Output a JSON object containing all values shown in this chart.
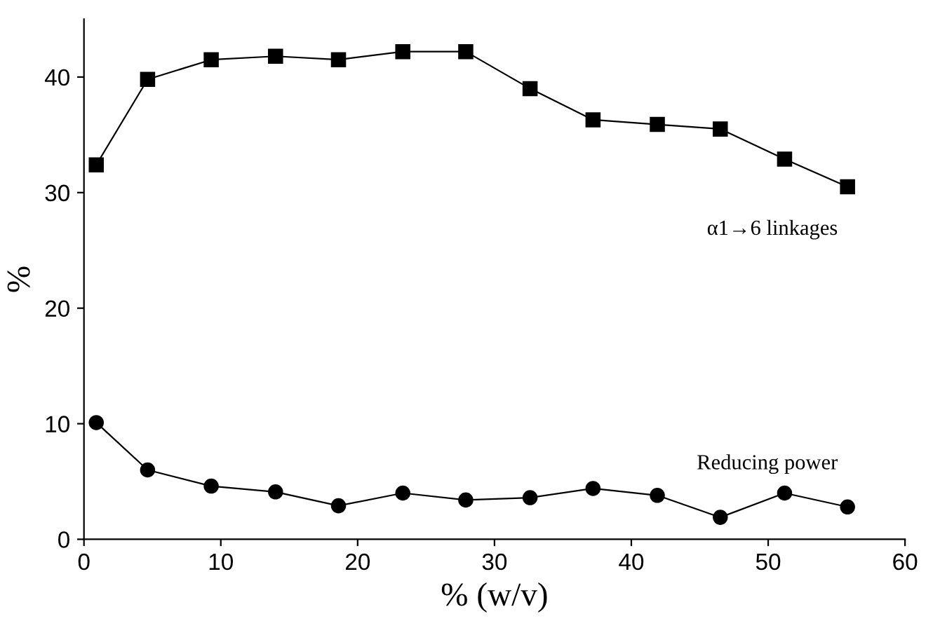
{
  "chart_data": {
    "type": "line",
    "xlabel": "% (w/v)",
    "ylabel": "%",
    "xlim": [
      0,
      60
    ],
    "xticks": [
      0,
      10,
      20,
      30,
      40,
      50,
      60
    ],
    "ylim": [
      0,
      45
    ],
    "yticks": [
      0,
      10,
      20,
      30,
      40
    ],
    "grid": false,
    "legend": false,
    "line_style": "solid",
    "series": [
      {
        "name": "α1→6 linkages",
        "color": "#000000",
        "marker": "square",
        "x": [
          0.9,
          4.65,
          9.3,
          14,
          18.6,
          23.3,
          27.9,
          32.6,
          37.2,
          41.9,
          46.5,
          51.2,
          55.8
        ],
        "values": [
          32.4,
          39.8,
          41.5,
          41.8,
          41.5,
          42.2,
          42.2,
          39.0,
          36.3,
          35.9,
          35.5,
          32.9,
          30.5
        ]
      },
      {
        "name": "Reducing power",
        "color": "#000000",
        "marker": "circle",
        "x": [
          0.9,
          4.65,
          9.3,
          14,
          18.6,
          23.3,
          27.9,
          32.6,
          37.2,
          41.9,
          46.5,
          51.2,
          55.8
        ],
        "values": [
          10.1,
          6.0,
          4.6,
          4.1,
          2.9,
          4.0,
          3.4,
          3.6,
          4.4,
          3.8,
          1.9,
          4.0,
          2.8
        ]
      }
    ]
  }
}
